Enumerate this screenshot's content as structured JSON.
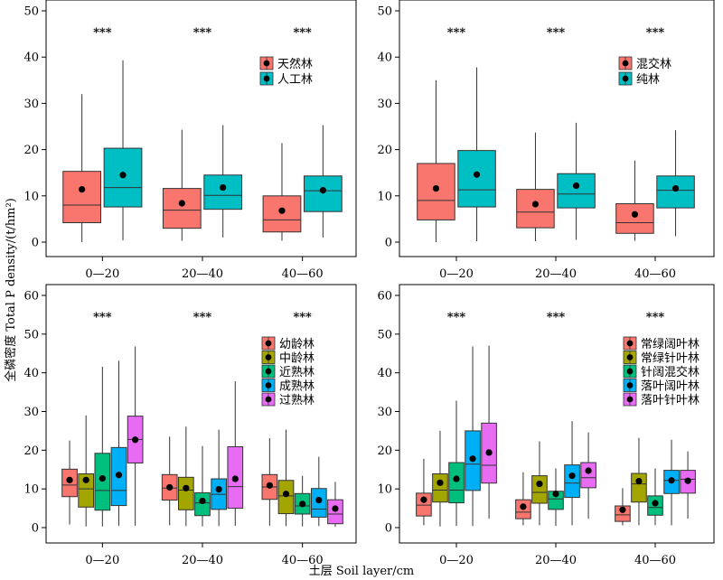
{
  "figure": {
    "ylabel": "全磷密度 Total P density/(t/hm²)",
    "xlabel": "土层 Soil layer/cm"
  },
  "chart_data": [
    {
      "type": "box",
      "panel": "top-left",
      "categories": [
        "0—20",
        "20—40",
        "40—60"
      ],
      "ylim": [
        0,
        50
      ],
      "yticks": [
        0,
        10,
        20,
        30,
        40,
        50
      ],
      "significance": [
        "***",
        "***",
        "***"
      ],
      "legend_position": "top-right",
      "series": [
        {
          "name": "天然林",
          "color": "#F8766D",
          "boxes": [
            {
              "whislo": 0,
              "q1": 4.2,
              "med": 8,
              "q3": 15.3,
              "whishi": 32,
              "mean": 11.4
            },
            {
              "whislo": 0.3,
              "q1": 3,
              "med": 6.9,
              "q3": 11.6,
              "whishi": 24.3,
              "mean": 8.4
            },
            {
              "whislo": 0.3,
              "q1": 2.2,
              "med": 4.8,
              "q3": 10,
              "whishi": 21.4,
              "mean": 6.8
            }
          ]
        },
        {
          "name": "人工林",
          "color": "#00BFC4",
          "boxes": [
            {
              "whislo": 0.4,
              "q1": 7.6,
              "med": 11.8,
              "q3": 20.3,
              "whishi": 39.3,
              "mean": 14.5
            },
            {
              "whislo": 1,
              "q1": 7.1,
              "med": 10.1,
              "q3": 14.5,
              "whishi": 25.3,
              "mean": 11.8
            },
            {
              "whislo": 1,
              "q1": 6.6,
              "med": 11.1,
              "q3": 14.3,
              "whishi": 25.3,
              "mean": 11.2
            }
          ]
        }
      ]
    },
    {
      "type": "box",
      "panel": "top-right",
      "categories": [
        "0—20",
        "20—40",
        "40—60"
      ],
      "ylim": [
        0,
        50
      ],
      "yticks": [
        0,
        10,
        20,
        30,
        40,
        50
      ],
      "significance": [
        "***",
        "***",
        "***"
      ],
      "legend_position": "top-right",
      "series": [
        {
          "name": "混交林",
          "color": "#F8766D",
          "boxes": [
            {
              "whislo": 0,
              "q1": 4.8,
              "med": 9,
              "q3": 17,
              "whishi": 35,
              "mean": 11.6
            },
            {
              "whislo": 0.2,
              "q1": 3.1,
              "med": 6.5,
              "q3": 11.4,
              "whishi": 23.7,
              "mean": 8.2
            },
            {
              "whislo": 0.3,
              "q1": 1.9,
              "med": 4.2,
              "q3": 8.3,
              "whishi": 17.6,
              "mean": 6
            }
          ]
        },
        {
          "name": "纯林",
          "color": "#00BFC4",
          "boxes": [
            {
              "whislo": 0.2,
              "q1": 7.6,
              "med": 11.3,
              "q3": 19.8,
              "whishi": 37.8,
              "mean": 14.6
            },
            {
              "whislo": 0.5,
              "q1": 7.4,
              "med": 10.4,
              "q3": 14.8,
              "whishi": 25.8,
              "mean": 12.2
            },
            {
              "whislo": 1.3,
              "q1": 7.4,
              "med": 11.2,
              "q3": 14.3,
              "whishi": 24.2,
              "mean": 11.6
            }
          ]
        }
      ]
    },
    {
      "type": "box",
      "panel": "bottom-left",
      "categories": [
        "0—20",
        "20—40",
        "40—60"
      ],
      "ylim": [
        0,
        60
      ],
      "yticks": [
        0,
        10,
        20,
        30,
        40,
        50,
        60
      ],
      "significance": [
        "***",
        "***",
        "***"
      ],
      "legend_position": "top-right",
      "series": [
        {
          "name": "幼龄林",
          "color": "#F8766D",
          "boxes": [
            {
              "whislo": 0.8,
              "q1": 8,
              "med": 11,
              "q3": 15.1,
              "whishi": 22.5,
              "mean": 12.3
            },
            {
              "whislo": 0.6,
              "q1": 7.1,
              "med": 10.2,
              "q3": 13.7,
              "whishi": 23.5,
              "mean": 10.4
            },
            {
              "whislo": 0.5,
              "q1": 7.3,
              "med": 10.5,
              "q3": 13.7,
              "whishi": 23.1,
              "mean": 10.9
            }
          ]
        },
        {
          "name": "中龄林",
          "color": "#A3A500",
          "boxes": [
            {
              "whislo": 0.3,
              "q1": 5.3,
              "med": 10,
              "q3": 13.9,
              "whishi": 29,
              "mean": 12.3
            },
            {
              "whislo": 0.4,
              "q1": 4.6,
              "med": 9.7,
              "q3": 13,
              "whishi": 26.1,
              "mean": 10.2
            },
            {
              "whislo": 0.4,
              "q1": 3.6,
              "med": 8.2,
              "q3": 12.2,
              "whishi": 25.3,
              "mean": 8.7
            }
          ]
        },
        {
          "name": "近熟林",
          "color": "#00BF7D",
          "boxes": [
            {
              "whislo": 0.3,
              "q1": 4.5,
              "med": 9.6,
              "q3": 19.2,
              "whishi": 41.6,
              "mean": 12.7
            },
            {
              "whislo": 0.3,
              "q1": 3.1,
              "med": 6.4,
              "q3": 9,
              "whishi": 21.1,
              "mean": 6.9
            },
            {
              "whislo": 0.3,
              "q1": 3.5,
              "med": 5.6,
              "q3": 8.8,
              "whishi": 13.4,
              "mean": 6.1
            }
          ]
        },
        {
          "name": "成熟林",
          "color": "#00B0F6",
          "boxes": [
            {
              "whislo": 0.5,
              "q1": 5.7,
              "med": 9.6,
              "q3": 20.7,
              "whishi": 43.1,
              "mean": 13.6
            },
            {
              "whislo": 0.4,
              "q1": 4.7,
              "med": 8.6,
              "q3": 12.6,
              "whishi": 25.3,
              "mean": 9.9
            },
            {
              "whislo": 0.4,
              "q1": 2.7,
              "med": 4.8,
              "q3": 10.1,
              "whishi": 18.3,
              "mean": 7.1
            }
          ]
        },
        {
          "name": "过熟林",
          "color": "#E76BF3",
          "boxes": [
            {
              "whislo": 0.5,
              "q1": 16.7,
              "med": 22.8,
              "q3": 28.8,
              "whishi": 46.8,
              "mean": 22.7
            },
            {
              "whislo": 0.5,
              "q1": 5,
              "med": 10.6,
              "q3": 20.9,
              "whishi": 37.8,
              "mean": 12.6
            },
            {
              "whislo": 0.2,
              "q1": 1,
              "med": 3.5,
              "q3": 7.2,
              "whishi": 11.8,
              "mean": 4.9
            }
          ]
        }
      ]
    },
    {
      "type": "box",
      "panel": "bottom-right",
      "categories": [
        "0—20",
        "20—40",
        "40—60"
      ],
      "ylim": [
        0,
        60
      ],
      "yticks": [
        0,
        10,
        20,
        30,
        40,
        50,
        60
      ],
      "significance": [
        "***",
        "***",
        "***"
      ],
      "legend_position": "top-right",
      "series": [
        {
          "name": "常绿阔叶林",
          "color": "#F8766D",
          "boxes": [
            {
              "whislo": 0.6,
              "q1": 3,
              "med": 5.8,
              "q3": 8.9,
              "whishi": 17.8,
              "mean": 7.2
            },
            {
              "whislo": 0.6,
              "q1": 2.3,
              "med": 4,
              "q3": 7.2,
              "whishi": 14.3,
              "mean": 5.4
            },
            {
              "whislo": 0.6,
              "q1": 1.6,
              "med": 3.3,
              "q3": 5.6,
              "whishi": 10.2,
              "mean": 4.6
            }
          ]
        },
        {
          "name": "常绿针叶林",
          "color": "#A3A500",
          "boxes": [
            {
              "whislo": 0.3,
              "q1": 6.6,
              "med": 9.7,
              "q3": 13.9,
              "whishi": 25,
              "mean": 11.6
            },
            {
              "whislo": 0.6,
              "q1": 6.3,
              "med": 9.1,
              "q3": 13.4,
              "whishi": 22.3,
              "mean": 11.3
            },
            {
              "whislo": 0.6,
              "q1": 6.6,
              "med": 11.3,
              "q3": 14,
              "whishi": 23.2,
              "mean": 12
            }
          ]
        },
        {
          "name": "针阔混交林",
          "color": "#00BF7D",
          "boxes": [
            {
              "whislo": 0.4,
              "q1": 6.4,
              "med": 9.7,
              "q3": 16.8,
              "whishi": 32.8,
              "mean": 12.6
            },
            {
              "whislo": 0.4,
              "q1": 4.7,
              "med": 7.4,
              "q3": 9.4,
              "whishi": 15.3,
              "mean": 8.7
            },
            {
              "whislo": 0.6,
              "q1": 3.2,
              "med": 5.2,
              "q3": 8.2,
              "whishi": 15.3,
              "mean": 6.3
            }
          ]
        },
        {
          "name": "落叶阔叶林",
          "color": "#00B0F6",
          "boxes": [
            {
              "whislo": 0.4,
              "q1": 9.6,
              "med": 16.4,
              "q3": 25,
              "whishi": 46.8,
              "mean": 17.8
            },
            {
              "whislo": 0.6,
              "q1": 7.8,
              "med": 11.5,
              "q3": 16.2,
              "whishi": 27.5,
              "mean": 13.4
            },
            {
              "whislo": 0.6,
              "q1": 8.8,
              "med": 12.2,
              "q3": 14.8,
              "whishi": 22.7,
              "mean": 12.2
            }
          ]
        },
        {
          "name": "落叶针叶林",
          "color": "#E76BF3",
          "boxes": [
            {
              "whislo": 2.3,
              "q1": 11.5,
              "med": 16.1,
              "q3": 27,
              "whishi": 47,
              "mean": 19.4
            },
            {
              "whislo": 2.3,
              "q1": 10.3,
              "med": 12.9,
              "q3": 16.8,
              "whishi": 24.6,
              "mean": 14.7
            },
            {
              "whislo": 2.3,
              "q1": 8.9,
              "med": 12.5,
              "q3": 14.8,
              "whishi": 19.7,
              "mean": 12.1
            }
          ]
        }
      ]
    }
  ]
}
